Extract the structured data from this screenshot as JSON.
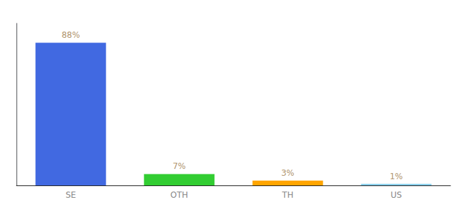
{
  "chart_data": {
    "type": "bar",
    "categories": [
      "SE",
      "OTH",
      "TH",
      "US"
    ],
    "values": [
      88,
      7,
      3,
      1
    ],
    "value_labels": [
      "88%",
      "7%",
      "3%",
      "1%"
    ],
    "colors": [
      "#4169E1",
      "#32CD32",
      "#FFA500",
      "#87CEEB"
    ],
    "ylim": [
      0,
      100
    ],
    "grid": false,
    "data_labels": true,
    "tick_labels": "x"
  }
}
